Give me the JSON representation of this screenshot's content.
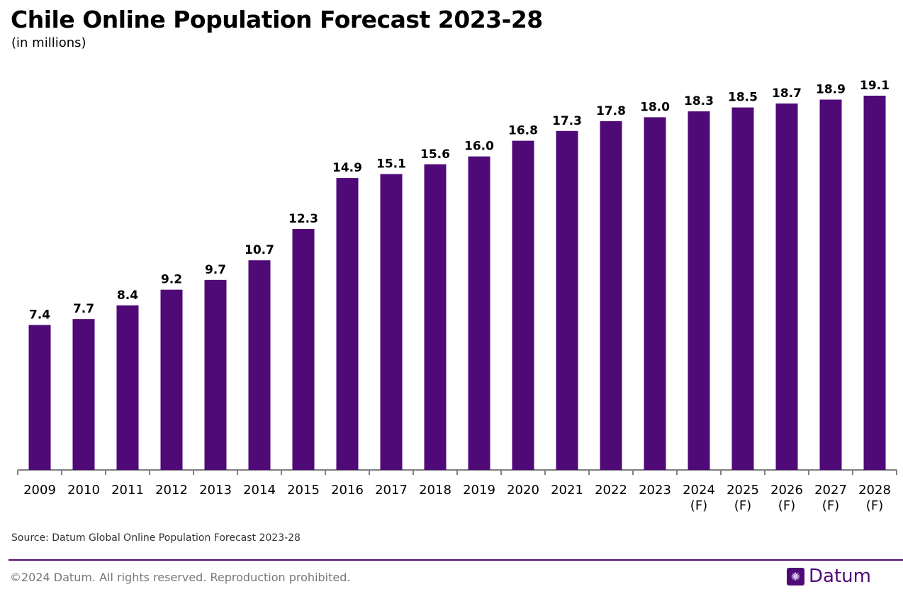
{
  "chart_data": {
    "type": "bar",
    "title": "Chile Online Population Forecast 2023-28",
    "subtitle": "(in millions)",
    "categories": [
      "2009",
      "2010",
      "2011",
      "2012",
      "2013",
      "2014",
      "2015",
      "2016",
      "2017",
      "2018",
      "2019",
      "2020",
      "2021",
      "2022",
      "2023",
      "2024\n(F)",
      "2025\n(F)",
      "2026\n(F)",
      "2027\n(F)",
      "2028\n(F)"
    ],
    "values": [
      7.4,
      7.7,
      8.4,
      9.2,
      9.7,
      10.7,
      12.3,
      14.9,
      15.1,
      15.6,
      16.0,
      16.8,
      17.3,
      17.8,
      18.0,
      18.3,
      18.5,
      18.7,
      18.9,
      19.1
    ],
    "data_labels": [
      "7.4",
      "7.7",
      "8.4",
      "9.2",
      "9.7",
      "10.7",
      "12.3",
      "14.9",
      "15.1",
      "15.6",
      "16.0",
      "16.8",
      "17.3",
      "17.8",
      "18.0",
      "18.3",
      "18.5",
      "18.7",
      "18.9",
      "19.1"
    ],
    "ylim": [
      0,
      19.1
    ],
    "grid": false,
    "legend": "none",
    "bar_color": "#4f0a78"
  },
  "footer": {
    "source": "Source: Datum Global Online Population Forecast 2023-28",
    "copyright": "©2024 Datum. All rights reserved. Reproduction prohibited.",
    "logo_text": "Datum",
    "logo_icon": "globe-icon"
  }
}
